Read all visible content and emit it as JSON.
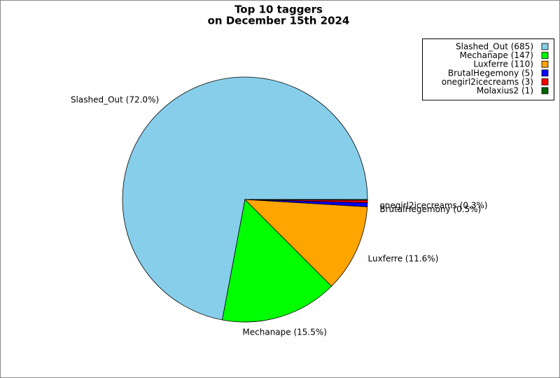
{
  "chart_data": {
    "type": "pie",
    "title": [
      "Top 10 taggers",
      "on December 15th 2024"
    ],
    "values": [
      685,
      147,
      110,
      5,
      3,
      1
    ],
    "slice_labels": [
      "Slashed_Out (72.0%)",
      "Mechanape (15.5%)",
      "Luxferre (11.6%)",
      "BrutalHegemony (0.5%)",
      "onegirl2icecreams (0.3%)",
      null
    ],
    "legend_labels": [
      "Slashed_Out (685)",
      "Mechanape (147)",
      "Luxferre (110)",
      "BrutalHegemony (5)",
      "onegirl2icecreams (3)",
      "Molaxius2 (1)"
    ],
    "colors": [
      "#87ceeb",
      "#00ff00",
      "#ffa500",
      "#0000ff",
      "#ff0000",
      "#006400"
    ],
    "legend": "upper right"
  }
}
